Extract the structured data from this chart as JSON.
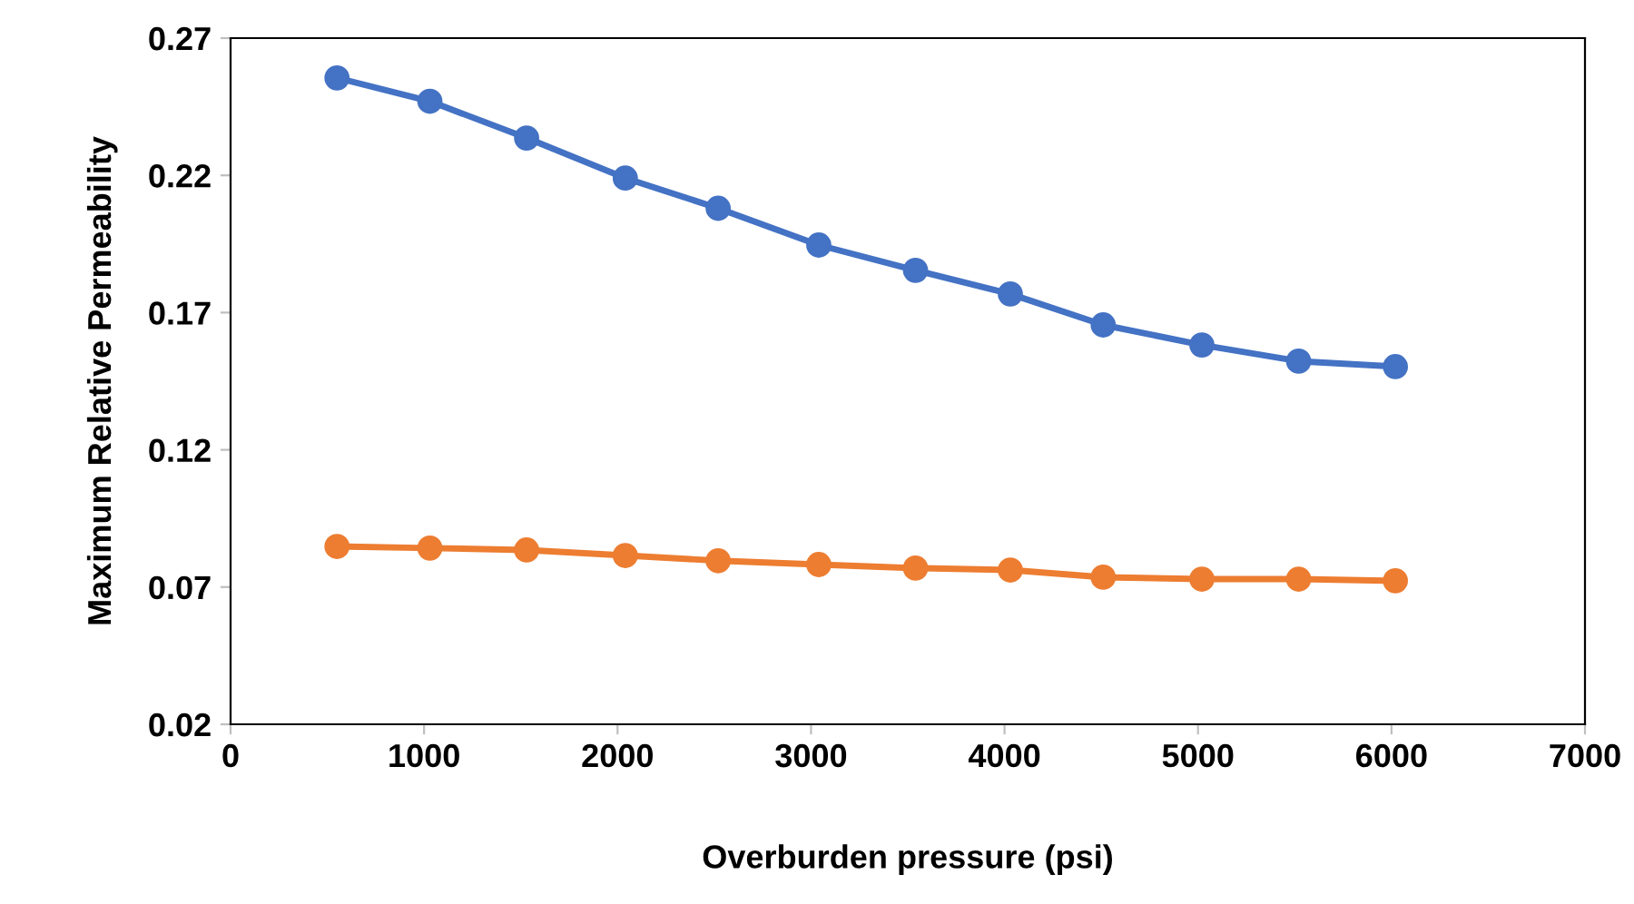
{
  "chart_data": {
    "type": "line",
    "xlabel": "Overburden pressure (psi)",
    "ylabel": "Maximum Relative Permeability",
    "x": [
      550,
      1030,
      1530,
      2040,
      2520,
      3040,
      3540,
      4030,
      4510,
      5020,
      5520,
      6020
    ],
    "series": [
      {
        "color": "#4472c4",
        "values": [
          0.2555,
          0.247,
          0.2336,
          0.219,
          0.208,
          0.1946,
          0.1854,
          0.1768,
          0.1655,
          0.1582,
          0.1523,
          0.1503
        ]
      },
      {
        "color": "#ed7d31",
        "values": [
          0.0848,
          0.0842,
          0.0835,
          0.0815,
          0.0796,
          0.0782,
          0.0769,
          0.0762,
          0.0736,
          0.0729,
          0.0729,
          0.0723
        ]
      }
    ],
    "xlim": [
      0,
      7000
    ],
    "xticks": [
      0,
      1000,
      2000,
      3000,
      4000,
      5000,
      6000,
      7000
    ],
    "ylim": [
      0.02,
      0.27
    ],
    "yticks": [
      {
        "value": 0.02,
        "label": "0.02"
      },
      {
        "value": 0.07,
        "label": "0.07"
      },
      {
        "value": 0.12,
        "label": "0.12"
      },
      {
        "value": 0.17,
        "label": "0.17"
      },
      {
        "value": 0.22,
        "label": "0.22"
      },
      {
        "value": 0.27,
        "label": "0.27"
      }
    ],
    "marker": "circle",
    "line_style": "solid",
    "grid": false,
    "legend": false
  }
}
